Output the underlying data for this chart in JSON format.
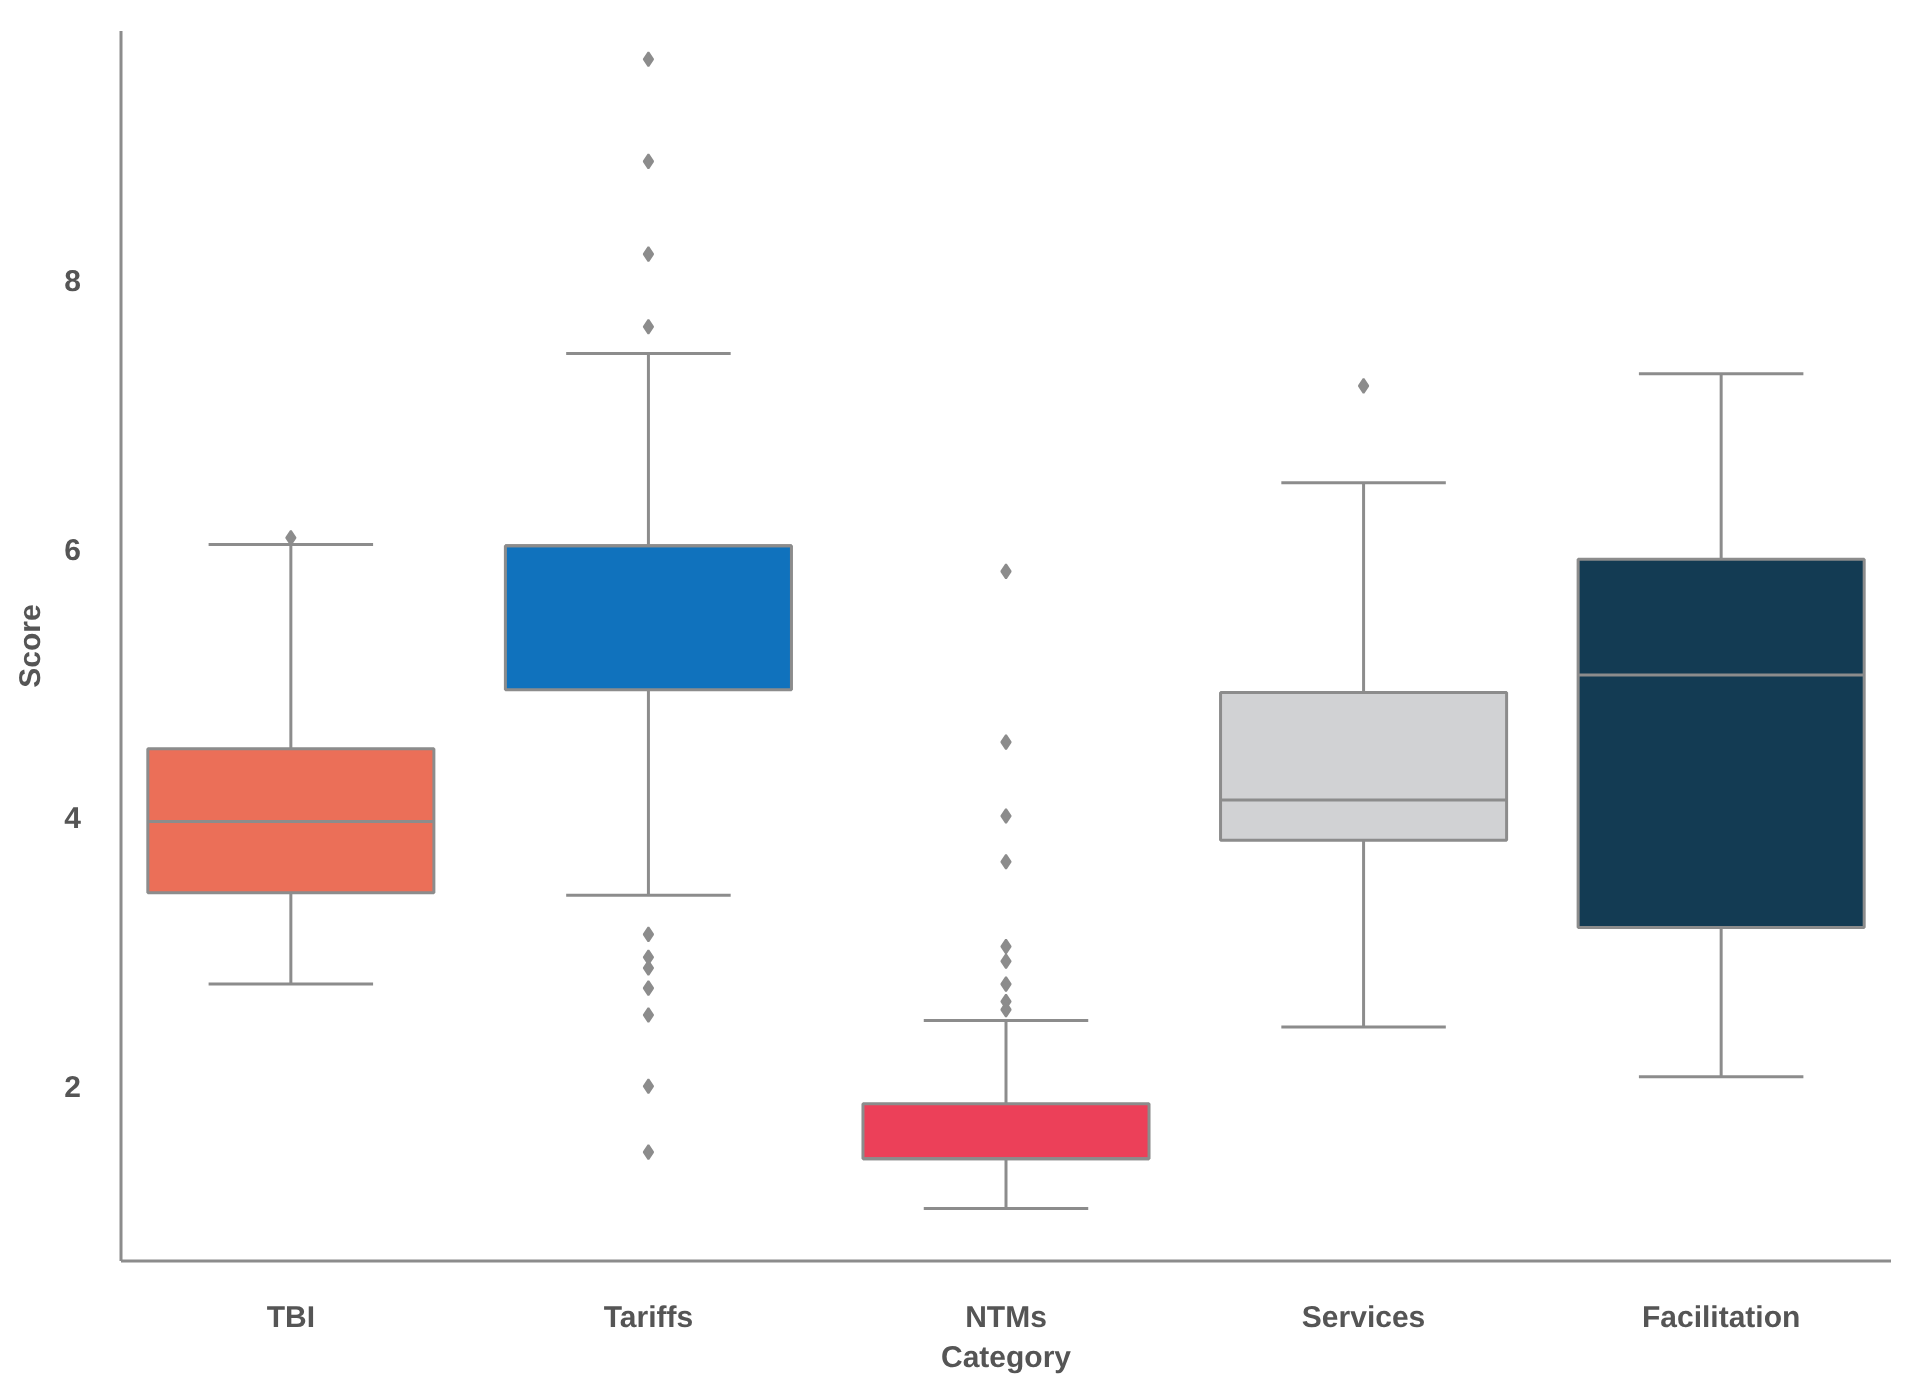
{
  "chart_data": {
    "type": "box",
    "xlabel": "Category",
    "ylabel": "Score",
    "categories": [
      "TBI",
      "Tariffs",
      "NTMs",
      "Services",
      "Facilitation"
    ],
    "colors": [
      "#eb6f58",
      "#1072bd",
      "#ec4059",
      "#d1d2d4",
      "#133b53"
    ],
    "ylim": [
      0.7,
      9.85
    ],
    "yticks": [
      2,
      4,
      6,
      8
    ],
    "marker": "diamond",
    "boxes": [
      {
        "low": 2.76,
        "q1": 3.44,
        "median": 3.97,
        "q3": 4.51,
        "high": 6.03,
        "outliers": [
          6.08
        ]
      },
      {
        "low": 3.42,
        "q1": 4.95,
        "median": 6.02,
        "q3": 6.02,
        "high": 7.45,
        "outliers": [
          9.64,
          8.88,
          8.19,
          7.65,
          3.13,
          2.96,
          2.88,
          2.73,
          2.53,
          2.0,
          1.51
        ]
      },
      {
        "low": 1.09,
        "q1": 1.46,
        "median": 1.46,
        "q3": 1.87,
        "high": 2.49,
        "outliers": [
          5.83,
          4.56,
          4.01,
          3.67,
          3.04,
          2.93,
          2.76,
          2.63,
          2.57
        ]
      },
      {
        "low": 2.44,
        "q1": 3.83,
        "median": 4.13,
        "q3": 4.93,
        "high": 6.49,
        "outliers": [
          7.21
        ]
      },
      {
        "low": 2.07,
        "q1": 3.18,
        "median": 5.06,
        "q3": 5.92,
        "high": 7.3
      }
    ]
  }
}
